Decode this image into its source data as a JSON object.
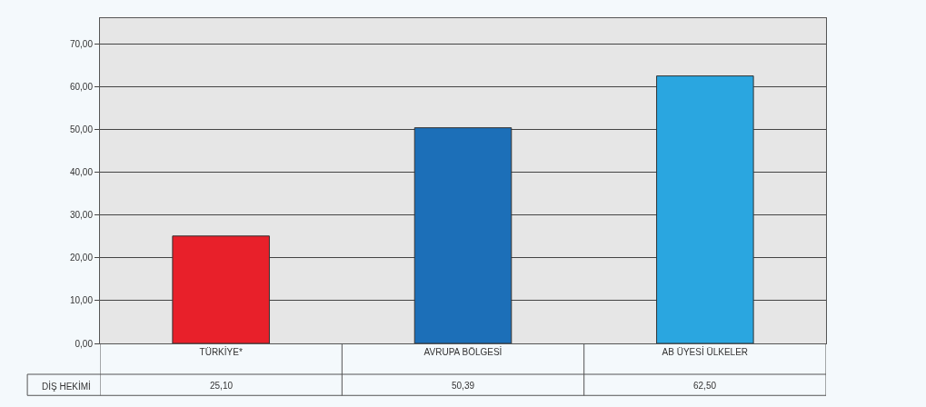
{
  "chart_data": {
    "type": "bar",
    "categories": [
      "TÜRKİYE*",
      "AVRUPA BÖLGESİ",
      "AB ÜYESİ ÜLKELER"
    ],
    "series": [
      {
        "name": "DİŞ HEKİMİ",
        "colors": [
          "#e8202a",
          "#1c6fb8",
          "#2aa6e0"
        ],
        "values": [
          25.1,
          50.39,
          62.5
        ],
        "value_labels": [
          "25,10",
          "50,39",
          "62,50"
        ]
      }
    ],
    "ylim": [
      0,
      76
    ],
    "yticks": [
      {
        "value": 0,
        "label": "0,00"
      },
      {
        "value": 10,
        "label": "10,00"
      },
      {
        "value": 20,
        "label": "20,00"
      },
      {
        "value": 30,
        "label": "30,00"
      },
      {
        "value": 40,
        "label": "40,00"
      },
      {
        "value": 50,
        "label": "50,00"
      },
      {
        "value": 60,
        "label": "60,00"
      },
      {
        "value": 70,
        "label": "70,00"
      }
    ],
    "grid": "y"
  }
}
